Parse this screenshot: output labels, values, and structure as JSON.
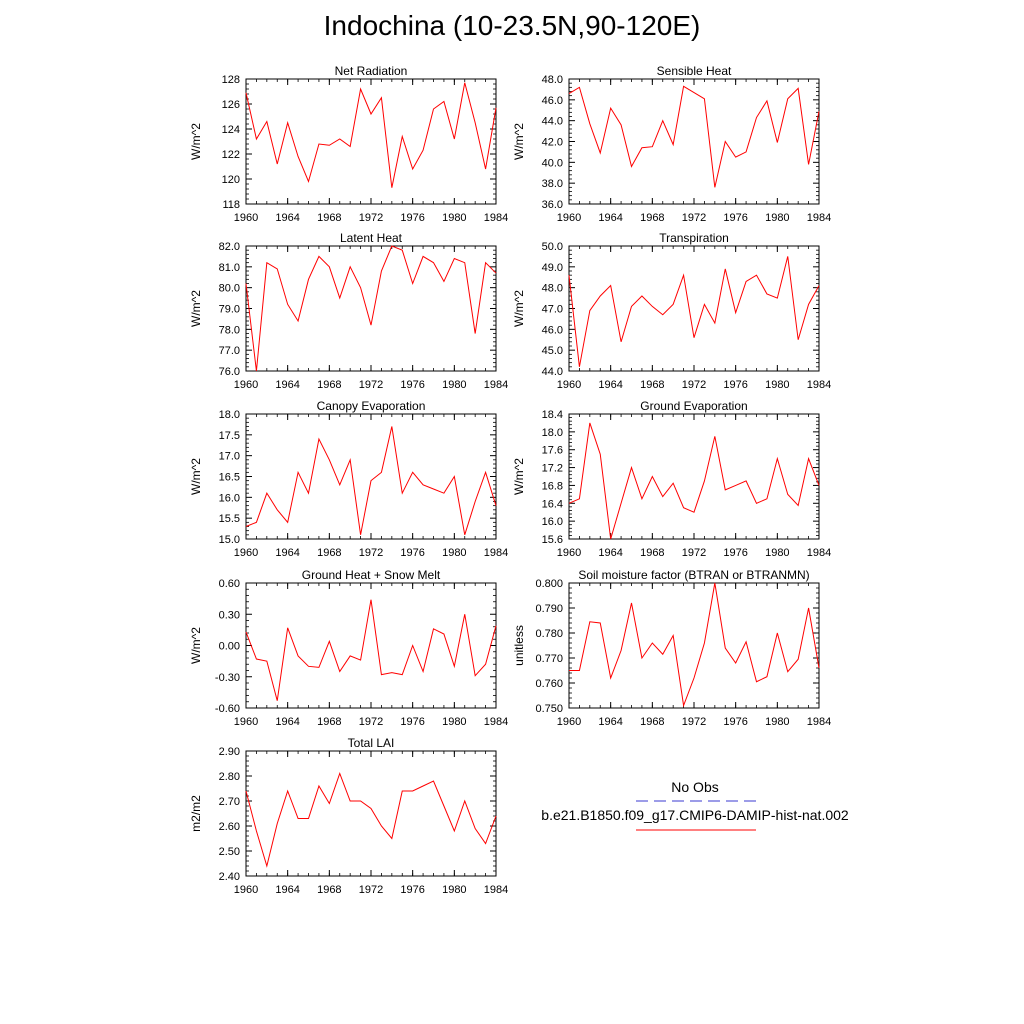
{
  "title": "Indochina (10-23.5N,90-120E)",
  "legend": {
    "obs_label": "No Obs",
    "model_label": "b.e21.B1850.f09_g17.CMIP6-DAMIP-hist-nat.002",
    "obs_color": "#3a3ad0",
    "model_color": "#ff0000"
  },
  "chart_data": [
    {
      "type": "line",
      "title": "Net Radiation",
      "ylabel": "W/m^2",
      "xlim": [
        1960,
        1984
      ],
      "ylim": [
        118,
        128
      ],
      "xticks": [
        "1960",
        "1964",
        "1968",
        "1972",
        "1976",
        "1980",
        "1984"
      ],
      "yticks": [
        "118",
        "120",
        "122",
        "124",
        "126",
        "128"
      ],
      "series": [
        {
          "x_start": 1960,
          "values": [
            126.9,
            123.2,
            124.6,
            121.2,
            124.5,
            121.8,
            119.8,
            122.8,
            122.7,
            123.2,
            122.6,
            127.2,
            125.2,
            126.5,
            119.3,
            123.4,
            120.8,
            122.3,
            125.6,
            126.2,
            123.2,
            127.7,
            124.5,
            120.8,
            125.7
          ]
        }
      ]
    },
    {
      "type": "line",
      "title": "Sensible Heat",
      "ylabel": "W/m^2",
      "xlim": [
        1960,
        1984
      ],
      "ylim": [
        36,
        48
      ],
      "xticks": [
        "1960",
        "1964",
        "1968",
        "1972",
        "1976",
        "1980",
        "1984"
      ],
      "yticks": [
        "36.0",
        "38.0",
        "40.0",
        "42.0",
        "44.0",
        "46.0",
        "48.0"
      ],
      "series": [
        {
          "x_start": 1960,
          "values": [
            46.6,
            47.2,
            43.7,
            40.9,
            45.2,
            43.6,
            39.6,
            41.4,
            41.5,
            44.0,
            41.7,
            47.3,
            46.7,
            46.1,
            37.6,
            42.0,
            40.5,
            41.0,
            44.3,
            45.9,
            41.9,
            46.1,
            47.1,
            39.8,
            44.9
          ]
        }
      ]
    },
    {
      "type": "line",
      "title": "Latent Heat",
      "ylabel": "W/m^2",
      "xlim": [
        1960,
        1984
      ],
      "ylim": [
        76,
        82
      ],
      "xticks": [
        "1960",
        "1964",
        "1968",
        "1972",
        "1976",
        "1980",
        "1984"
      ],
      "yticks": [
        "76.0",
        "77.0",
        "78.0",
        "79.0",
        "80.0",
        "81.0",
        "82.0"
      ],
      "series": [
        {
          "x_start": 1960,
          "values": [
            80.2,
            76.0,
            81.2,
            80.9,
            79.2,
            78.4,
            80.4,
            81.5,
            81.0,
            79.5,
            81.0,
            80.0,
            78.2,
            80.8,
            82.0,
            81.8,
            80.2,
            81.5,
            81.2,
            80.3,
            81.4,
            81.2,
            77.8,
            81.2,
            80.7
          ]
        }
      ]
    },
    {
      "type": "line",
      "title": "Transpiration",
      "ylabel": "W/m^2",
      "xlim": [
        1960,
        1984
      ],
      "ylim": [
        44,
        50
      ],
      "xticks": [
        "1960",
        "1964",
        "1968",
        "1972",
        "1976",
        "1980",
        "1984"
      ],
      "yticks": [
        "44.0",
        "45.0",
        "46.0",
        "47.0",
        "48.0",
        "49.0",
        "50.0"
      ],
      "series": [
        {
          "x_start": 1960,
          "values": [
            48.6,
            44.2,
            46.9,
            47.6,
            48.1,
            45.4,
            47.1,
            47.6,
            47.1,
            46.7,
            47.2,
            48.6,
            45.6,
            47.2,
            46.3,
            48.9,
            46.8,
            48.3,
            48.6,
            47.7,
            47.5,
            49.5,
            45.5,
            47.2,
            48.1
          ]
        }
      ]
    },
    {
      "type": "line",
      "title": "Canopy Evaporation",
      "ylabel": "W/m^2",
      "xlim": [
        1960,
        1984
      ],
      "ylim": [
        15,
        18
      ],
      "xticks": [
        "1960",
        "1964",
        "1968",
        "1972",
        "1976",
        "1980",
        "1984"
      ],
      "yticks": [
        "15.0",
        "15.5",
        "16.0",
        "16.5",
        "17.0",
        "17.5",
        "18.0"
      ],
      "series": [
        {
          "x_start": 1960,
          "values": [
            15.3,
            15.4,
            16.1,
            15.7,
            15.4,
            16.6,
            16.1,
            17.4,
            16.9,
            16.3,
            16.9,
            15.1,
            16.4,
            16.6,
            17.7,
            16.1,
            16.6,
            16.3,
            16.2,
            16.1,
            16.5,
            15.1,
            15.9,
            16.6,
            15.8
          ]
        }
      ]
    },
    {
      "type": "line",
      "title": "Ground Evaporation",
      "ylabel": "W/m^2",
      "xlim": [
        1960,
        1984
      ],
      "ylim": [
        15.6,
        18.4
      ],
      "xticks": [
        "1960",
        "1964",
        "1968",
        "1972",
        "1976",
        "1980",
        "1984"
      ],
      "yticks": [
        "15.6",
        "16.0",
        "16.4",
        "16.8",
        "17.2",
        "17.6",
        "18.0",
        "18.4"
      ],
      "series": [
        {
          "x_start": 1960,
          "values": [
            16.4,
            16.5,
            18.2,
            17.5,
            15.6,
            16.4,
            17.2,
            16.5,
            17.0,
            16.55,
            16.85,
            16.3,
            16.2,
            16.9,
            17.9,
            16.7,
            16.8,
            16.9,
            16.4,
            16.5,
            17.4,
            16.6,
            16.35,
            17.4,
            16.8
          ]
        }
      ]
    },
    {
      "type": "line",
      "title": "Ground Heat + Snow Melt",
      "ylabel": "W/m^2",
      "xlim": [
        1960,
        1984
      ],
      "ylim": [
        -0.6,
        0.6
      ],
      "xticks": [
        "1960",
        "1964",
        "1968",
        "1972",
        "1976",
        "1980",
        "1984"
      ],
      "yticks": [
        "-0.60",
        "-0.30",
        "0.00",
        "0.30",
        "0.60"
      ],
      "series": [
        {
          "x_start": 1960,
          "values": [
            0.13,
            -0.13,
            -0.15,
            -0.53,
            0.17,
            -0.1,
            -0.2,
            -0.21,
            0.04,
            -0.25,
            -0.1,
            -0.14,
            0.44,
            -0.28,
            -0.26,
            -0.28,
            0.0,
            -0.25,
            0.16,
            0.11,
            -0.2,
            0.3,
            -0.29,
            -0.18,
            0.19
          ]
        }
      ]
    },
    {
      "type": "line",
      "title": "Soil moisture factor (BTRAN or BTRANMN)",
      "ylabel": "unitless",
      "xlim": [
        1960,
        1984
      ],
      "ylim": [
        0.75,
        0.8
      ],
      "xticks": [
        "1960",
        "1964",
        "1968",
        "1972",
        "1976",
        "1980",
        "1984"
      ],
      "yticks": [
        "0.750",
        "0.760",
        "0.770",
        "0.780",
        "0.790",
        "0.800"
      ],
      "series": [
        {
          "x_start": 1960,
          "values": [
            0.765,
            0.765,
            0.7845,
            0.784,
            0.762,
            0.773,
            0.792,
            0.77,
            0.776,
            0.7715,
            0.779,
            0.751,
            0.762,
            0.776,
            0.8,
            0.774,
            0.768,
            0.7765,
            0.7605,
            0.7625,
            0.78,
            0.7645,
            0.7695,
            0.79,
            0.766
          ]
        }
      ]
    },
    {
      "type": "line",
      "title": "Total LAI",
      "ylabel": "m2/m2",
      "xlim": [
        1960,
        1984
      ],
      "ylim": [
        2.4,
        2.9
      ],
      "xticks": [
        "1960",
        "1964",
        "1968",
        "1972",
        "1976",
        "1980",
        "1984"
      ],
      "yticks": [
        "2.40",
        "2.50",
        "2.60",
        "2.70",
        "2.80",
        "2.90"
      ],
      "series": [
        {
          "x_start": 1960,
          "values": [
            2.74,
            2.58,
            2.44,
            2.61,
            2.74,
            2.63,
            2.63,
            2.76,
            2.69,
            2.81,
            2.7,
            2.7,
            2.67,
            2.6,
            2.55,
            2.74,
            2.74,
            2.76,
            2.78,
            2.68,
            2.58,
            2.7,
            2.59,
            2.53,
            2.64
          ]
        }
      ]
    }
  ]
}
